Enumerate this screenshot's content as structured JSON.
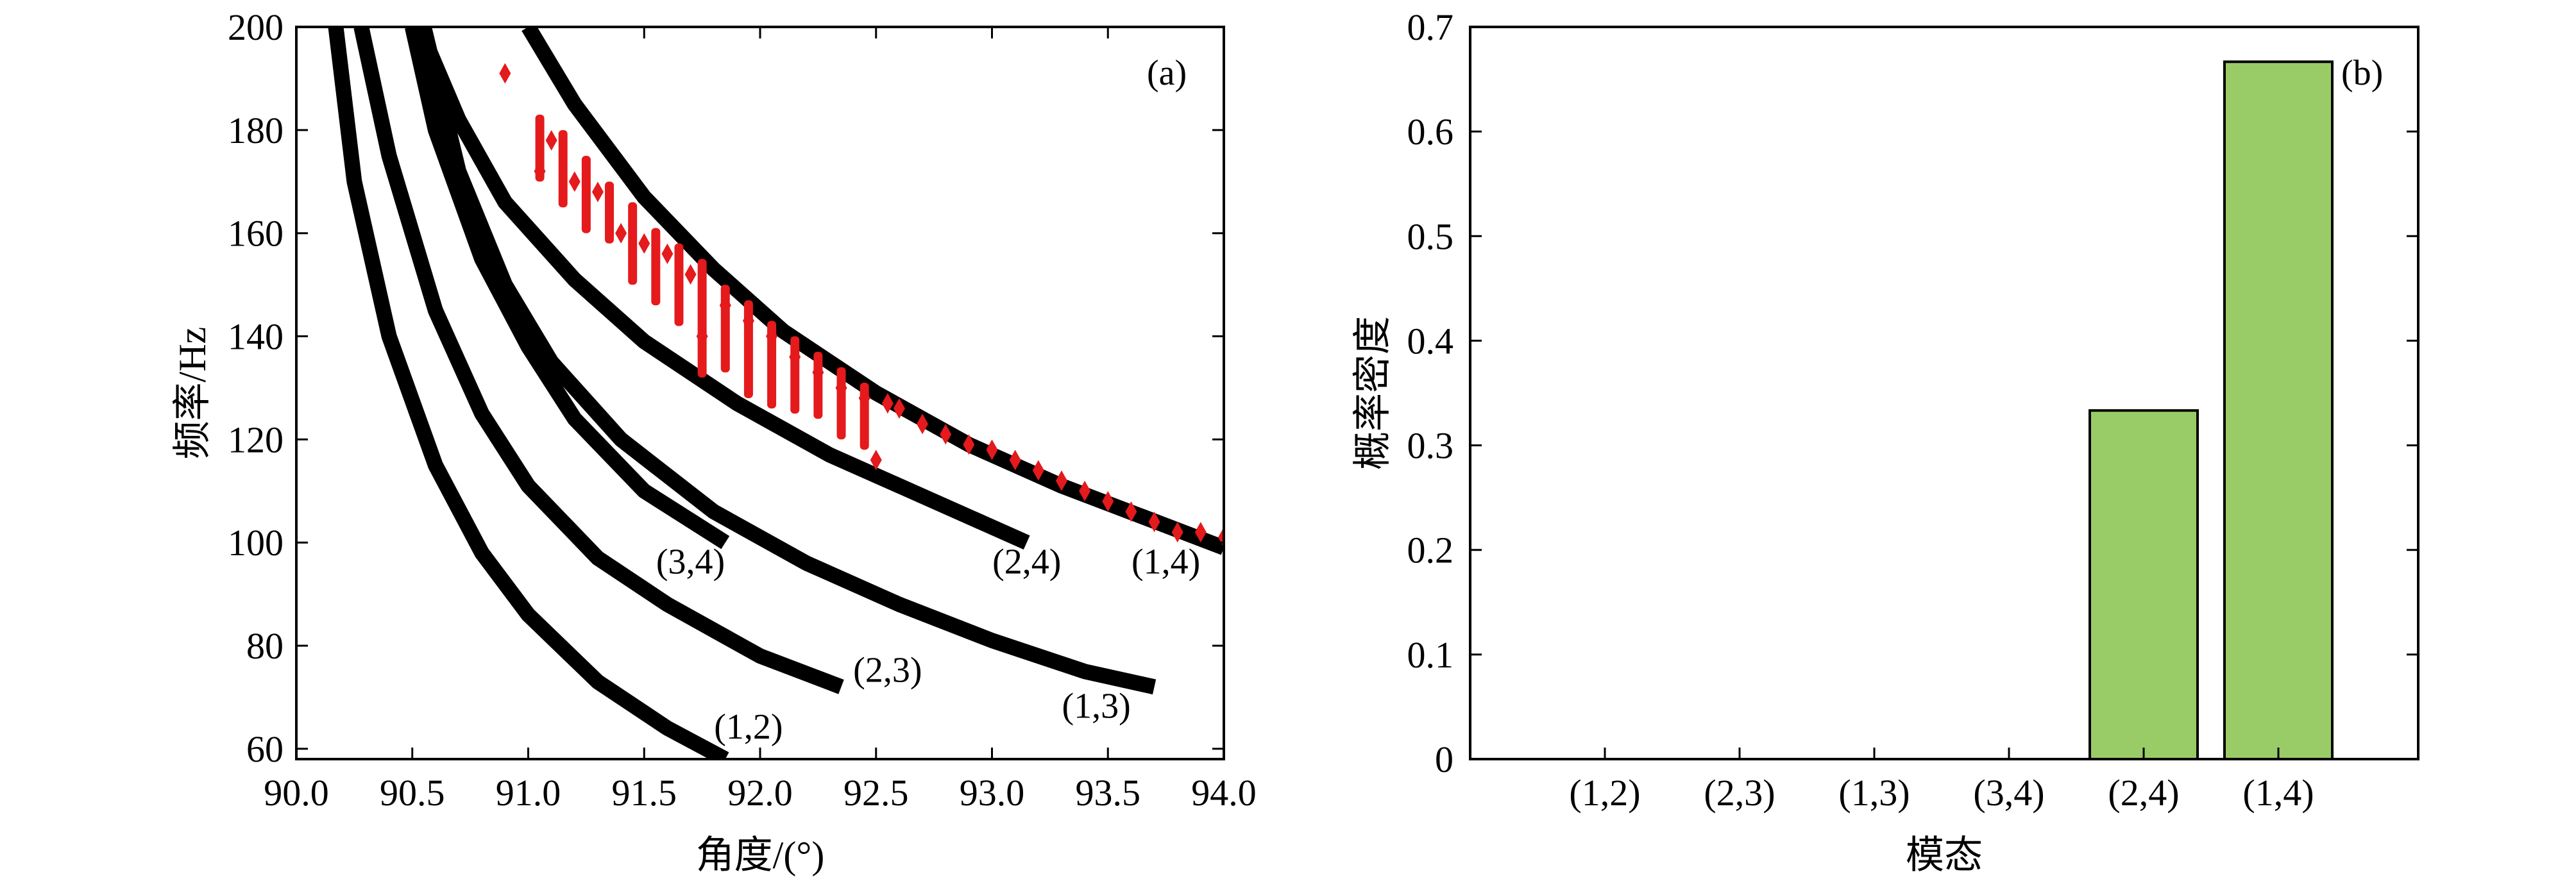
{
  "chart_data": [
    {
      "panel_label": "(a)",
      "type": "scatter",
      "xlabel": "角度/(°)",
      "ylabel": "频率/Hz",
      "xlim": [
        90.0,
        94.0
      ],
      "ylim": [
        58,
        200
      ],
      "xticks": [
        "90.0",
        "90.5",
        "91.0",
        "91.5",
        "92.0",
        "92.5",
        "93.0",
        "93.5",
        "94.0"
      ],
      "yticks": [
        "60",
        "80",
        "100",
        "120",
        "140",
        "160",
        "180",
        "200"
      ],
      "grid": false,
      "series": [
        {
          "name": "(1,2)",
          "color": "#000000",
          "x": [
            90.17,
            90.25,
            90.4,
            90.6,
            90.8,
            91.0,
            91.3,
            91.6,
            91.85
          ],
          "y": [
            200,
            170,
            140,
            115,
            98,
            86,
            73,
            64,
            58
          ]
        },
        {
          "name": "(2,3)",
          "color": "#000000",
          "x": [
            90.28,
            90.4,
            90.6,
            90.8,
            91.0,
            91.3,
            91.6,
            92.0,
            92.35
          ],
          "y": [
            200,
            175,
            145,
            125,
            111,
            97,
            88,
            78,
            72
          ]
        },
        {
          "name": "(3,4)",
          "color": "#000000",
          "x": [
            90.5,
            90.6,
            90.8,
            91.0,
            91.2,
            91.5,
            91.85
          ],
          "y": [
            200,
            180,
            155,
            138,
            124,
            110,
            100
          ]
        },
        {
          "name": "(1,3)",
          "color": "#000000",
          "x": [
            90.55,
            90.7,
            90.9,
            91.1,
            91.4,
            91.8,
            92.2,
            92.6,
            93.0,
            93.4,
            93.7
          ],
          "y": [
            200,
            172,
            150,
            135,
            120,
            106,
            96,
            88,
            81,
            75,
            72
          ]
        },
        {
          "name": "(2,4)",
          "color": "#000000",
          "x": [
            90.53,
            90.7,
            90.9,
            91.2,
            91.5,
            91.9,
            92.3,
            92.7,
            93.15
          ],
          "y": [
            200,
            182,
            166,
            151,
            139,
            127,
            117,
            109,
            100
          ]
        },
        {
          "name": "(1,4)",
          "color": "#000000",
          "x": [
            91.0,
            91.2,
            91.5,
            91.8,
            92.1,
            92.5,
            92.9,
            93.3,
            93.65,
            94.0
          ],
          "y": [
            200,
            185,
            167,
            153,
            141,
            129,
            119,
            111,
            105,
            99
          ]
        },
        {
          "name": "",
          "color": "#e41a1c",
          "marker": "diamond",
          "x": [
            90.9,
            91.05,
            91.1,
            91.2,
            91.3,
            91.4,
            91.5,
            91.6,
            91.7,
            91.75,
            91.85,
            91.95,
            92.05,
            92.15,
            92.25,
            92.35,
            92.45,
            92.5,
            92.55,
            92.6,
            92.7,
            92.8,
            92.9,
            93.0,
            93.1,
            93.2,
            93.3,
            93.4,
            93.5,
            93.6,
            93.7,
            93.8,
            93.9,
            94.0
          ],
          "y": [
            191,
            172,
            178,
            170,
            168,
            160,
            158,
            156,
            152,
            140,
            146,
            143,
            140,
            136,
            133,
            130,
            128,
            116,
            127,
            126,
            123,
            121,
            119,
            118,
            116,
            114,
            112,
            110,
            108,
            106,
            104,
            102,
            102,
            101
          ]
        }
      ],
      "annotations": [
        {
          "text": "(1,2)",
          "x": 91.95,
          "y": 62
        },
        {
          "text": "(2,3)",
          "x": 92.55,
          "y": 73
        },
        {
          "text": "(3,4)",
          "x": 91.7,
          "y": 94
        },
        {
          "text": "(1,3)",
          "x": 93.45,
          "y": 66
        },
        {
          "text": "(2,4)",
          "x": 93.15,
          "y": 94
        },
        {
          "text": "(1,4)",
          "x": 93.75,
          "y": 94
        }
      ]
    },
    {
      "panel_label": "(b)",
      "type": "bar",
      "xlabel": "模态",
      "ylabel": "概率密度",
      "categories": [
        "(1,2)",
        "(2,3)",
        "(1,3)",
        "(3,4)",
        "(2,4)",
        "(1,4)"
      ],
      "values": [
        0,
        0,
        0,
        0,
        0.3333,
        0.6667
      ],
      "ylim": [
        0,
        0.7
      ],
      "yticks": [
        "0",
        "0.1",
        "0.2",
        "0.3",
        "0.4",
        "0.5",
        "0.6",
        "0.7"
      ],
      "bar_color": "#99cc66",
      "grid": false
    }
  ]
}
